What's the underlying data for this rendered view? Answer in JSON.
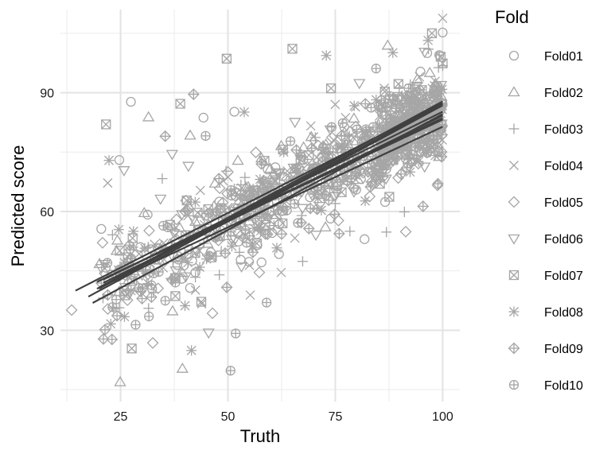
{
  "chart_data": {
    "type": "scatter",
    "xlabel": "Truth",
    "ylabel": "Predicted score",
    "xlim": [
      11,
      104
    ],
    "ylim": [
      12,
      111
    ],
    "x_ticks": [
      25,
      50,
      75,
      100
    ],
    "y_ticks": [
      30,
      60,
      90
    ],
    "grid": true,
    "legend": {
      "title": "Fold",
      "placement": "right",
      "entries": [
        "Fold01",
        "Fold02",
        "Fold03",
        "Fold04",
        "Fold05",
        "Fold06",
        "Fold07",
        "Fold08",
        "Fold09",
        "Fold10"
      ]
    },
    "point_color": "#a6a6a6",
    "line_color": "#404040",
    "folds": [
      {
        "name": "Fold01",
        "shape": "circle",
        "fit": [
          18.5,
          36.9,
          100,
          84.6
        ],
        "points": [
          [
            20.5,
            55.6
          ],
          [
            24.7,
            73.0
          ],
          [
            27.4,
            87.7
          ],
          [
            31.3,
            59.2
          ],
          [
            44.3,
            83.7
          ],
          [
            51.5,
            85.2
          ],
          [
            54.9,
            47.3
          ],
          [
            60.5,
            64.2
          ],
          [
            73.9,
            58.2
          ],
          [
            81.8,
            53.0
          ],
          [
            86.6,
            62.4
          ],
          [
            92.6,
            81.0
          ],
          [
            96.4,
            100.0
          ],
          [
            100.0,
            105.2
          ],
          [
            100.0,
            87.0
          ],
          [
            35.1,
            49.8
          ],
          [
            48.0,
            62.5
          ],
          [
            62.0,
            56.8
          ],
          [
            78.0,
            72.0
          ],
          [
            90.0,
            76.0
          ]
        ]
      },
      {
        "name": "Fold02",
        "shape": "triangle",
        "fit": [
          14.5,
          40.0,
          100,
          87.3
        ],
        "points": [
          [
            24.9,
            16.9
          ],
          [
            31.5,
            83.8
          ],
          [
            37.1,
            34.8
          ],
          [
            39.4,
            20.3
          ],
          [
            41.2,
            79.2
          ],
          [
            60.2,
            65.7
          ],
          [
            72.7,
            56.0
          ],
          [
            87.2,
            101.9
          ],
          [
            94.5,
            79.4
          ],
          [
            99.1,
            73.8
          ],
          [
            28.0,
            45.0
          ],
          [
            46.0,
            55.0
          ],
          [
            57.0,
            63.0
          ],
          [
            80.0,
            70.0
          ],
          [
            92.0,
            88.0
          ],
          [
            97.0,
            95.0
          ]
        ]
      },
      {
        "name": "Fold03",
        "shape": "plus",
        "fit": [
          17.5,
          38.5,
          100,
          86.8
        ],
        "points": [
          [
            24.7,
            35.7
          ],
          [
            34.7,
            68.3
          ],
          [
            40.2,
            54.0
          ],
          [
            54.5,
            59.5
          ],
          [
            67.4,
            47.4
          ],
          [
            78.4,
            55.0
          ],
          [
            86.9,
            54.8
          ],
          [
            91.1,
            59.9
          ],
          [
            96.7,
            101.0
          ],
          [
            100.0,
            96.8
          ],
          [
            30.0,
            50.0
          ],
          [
            48.0,
            44.0
          ],
          [
            62.0,
            67.0
          ],
          [
            75.0,
            62.0
          ],
          [
            88.0,
            80.0
          ]
        ]
      },
      {
        "name": "Fold04",
        "shape": "cross",
        "fit": [
          20,
          40.8,
          100,
          87.8
        ],
        "points": [
          [
            22.0,
            67.2
          ],
          [
            29.3,
            49.3
          ],
          [
            43.9,
            36.7
          ],
          [
            55.0,
            46.4
          ],
          [
            55.2,
            38.9
          ],
          [
            62.4,
            44.6
          ],
          [
            69.3,
            81.6
          ],
          [
            79.7,
            86.4
          ],
          [
            94.6,
            94.0
          ],
          [
            100.0,
            108.8
          ],
          [
            35.0,
            52.0
          ],
          [
            50.0,
            61.0
          ],
          [
            66.0,
            71.0
          ],
          [
            84.0,
            74.0
          ],
          [
            97.0,
            84.0
          ]
        ]
      },
      {
        "name": "Fold05",
        "shape": "diamond",
        "fit": [
          19.5,
          42.2,
          100,
          83.2
        ],
        "points": [
          [
            13.6,
            35.1
          ],
          [
            20.8,
            52.1
          ],
          [
            26.6,
            37.6
          ],
          [
            32.5,
            26.8
          ],
          [
            46.4,
            34.3
          ],
          [
            57.3,
            44.6
          ],
          [
            63.6,
            61.2
          ],
          [
            74.2,
            78.7
          ],
          [
            83.0,
            63.8
          ],
          [
            91.4,
            54.9
          ],
          [
            98.8,
            66.6
          ],
          [
            38.0,
            58.0
          ],
          [
            50.0,
            70.0
          ],
          [
            70.0,
            66.0
          ],
          [
            89.0,
            86.0
          ]
        ]
      },
      {
        "name": "Fold06",
        "shape": "triangle-down",
        "fit": [
          21,
          42.0,
          100,
          84.2
        ],
        "points": [
          [
            20.5,
            45.7
          ],
          [
            25.8,
            70.4
          ],
          [
            34.3,
            63.2
          ],
          [
            37.0,
            74.5
          ],
          [
            40.8,
            71.5
          ],
          [
            45.5,
            29.4
          ],
          [
            51.6,
            52.9
          ],
          [
            65.6,
            82.6
          ],
          [
            80.6,
            92.4
          ],
          [
            95.8,
            100.3
          ],
          [
            30.0,
            44.0
          ],
          [
            42.0,
            58.0
          ],
          [
            58.0,
            62.0
          ],
          [
            72.0,
            70.0
          ],
          [
            90.0,
            83.0
          ]
        ]
      },
      {
        "name": "Fold07",
        "shape": "square-x",
        "fit": [
          21,
          42.8,
          100,
          85.2
        ],
        "points": [
          [
            21.6,
            82.0
          ],
          [
            27.6,
            25.4
          ],
          [
            38.9,
            87.2
          ],
          [
            43.8,
            37.2
          ],
          [
            49.7,
            98.6
          ],
          [
            58.5,
            72.8
          ],
          [
            65.0,
            101.1
          ],
          [
            74.0,
            91.1
          ],
          [
            85.4,
            67.0
          ],
          [
            89.7,
            92.2
          ],
          [
            97.5,
            105.0
          ],
          [
            100.0,
            97.4
          ],
          [
            33.0,
            48.0
          ],
          [
            53.0,
            58.0
          ],
          [
            80.0,
            74.0
          ]
        ]
      },
      {
        "name": "Fold08",
        "shape": "asterisk",
        "fit": [
          21,
          43.0,
          100,
          83.6
        ],
        "points": [
          [
            22.3,
            72.9
          ],
          [
            31.4,
            41.8
          ],
          [
            40.0,
            36.2
          ],
          [
            41.5,
            24.9
          ],
          [
            53.8,
            85.1
          ],
          [
            63.0,
            75.0
          ],
          [
            72.9,
            99.4
          ],
          [
            79.4,
            86.7
          ],
          [
            88.4,
            100.1
          ],
          [
            96.6,
            103.2
          ],
          [
            28.0,
            55.0
          ],
          [
            45.0,
            48.0
          ],
          [
            58.0,
            63.0
          ],
          [
            83.0,
            78.0
          ],
          [
            94.0,
            88.0
          ]
        ]
      },
      {
        "name": "Fold09",
        "shape": "circle-plus-diamond",
        "fit": [
          19.5,
          40.5,
          100,
          81.4
        ],
        "points": [
          [
            21.0,
            27.8
          ],
          [
            23.0,
            27.7
          ],
          [
            35.4,
            79.0
          ],
          [
            42.0,
            89.6
          ],
          [
            47.9,
            68.3
          ],
          [
            57.8,
            72.0
          ],
          [
            62.5,
            54.3
          ],
          [
            75.9,
            54.4
          ],
          [
            82.0,
            87.2
          ],
          [
            91.7,
            89.3
          ],
          [
            98.9,
            67.0
          ],
          [
            30.0,
            38.0
          ],
          [
            40.0,
            60.0
          ],
          [
            66.0,
            66.0
          ],
          [
            86.0,
            76.0
          ]
        ]
      },
      {
        "name": "Fold10",
        "shape": "circle-plus",
        "fit": [
          20,
          40.5,
          100,
          87.2
        ],
        "points": [
          [
            28.5,
            31.4
          ],
          [
            31.6,
            33.5
          ],
          [
            37.6,
            43.4
          ],
          [
            44.8,
            79.1
          ],
          [
            50.6,
            19.8
          ],
          [
            51.8,
            29.2
          ],
          [
            59.0,
            37.0
          ],
          [
            66.3,
            57.1
          ],
          [
            76.5,
            74.9
          ],
          [
            84.5,
            96.1
          ],
          [
            99.2,
            99.5
          ],
          [
            36.0,
            56.0
          ],
          [
            55.0,
            64.0
          ],
          [
            70.0,
            71.0
          ],
          [
            93.0,
            82.0
          ]
        ]
      }
    ]
  }
}
